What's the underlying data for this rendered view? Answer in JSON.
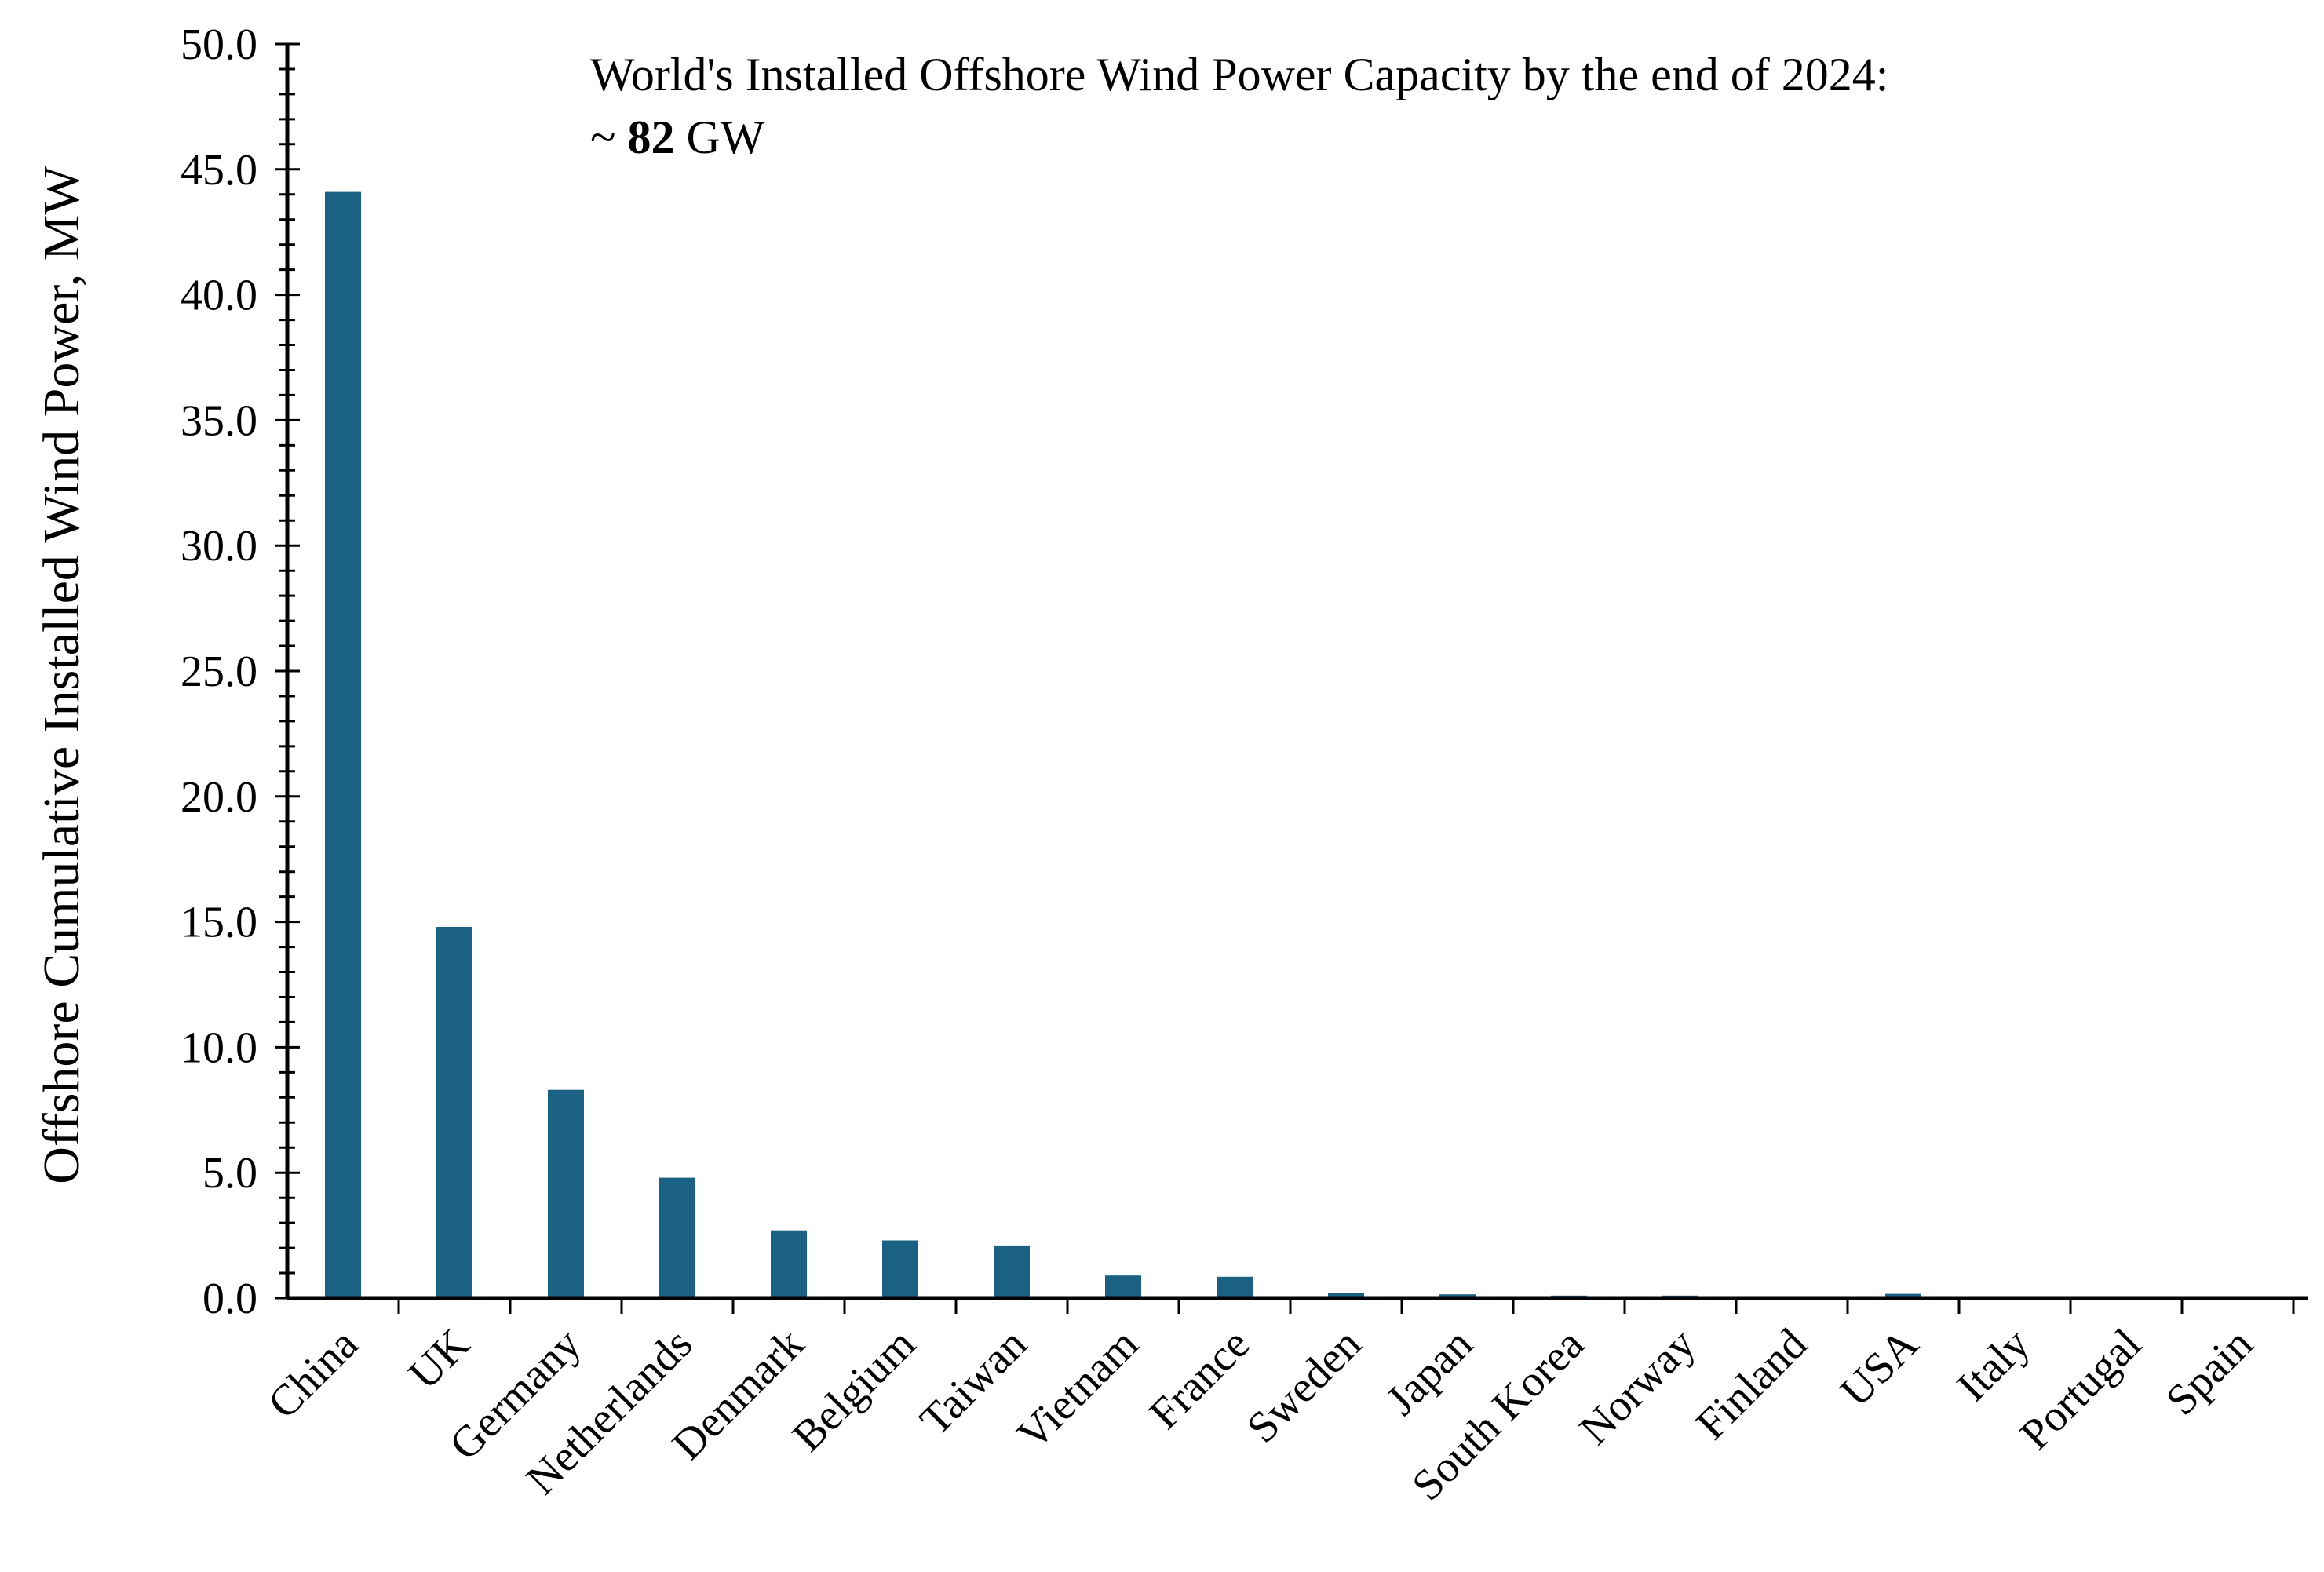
{
  "chart_data": {
    "type": "bar",
    "title": "",
    "annotation": {
      "line1": "World's Installed Offshore Wind Power Capacity by the end of 2024:",
      "line2_prefix": "~ ",
      "line2_value": "82",
      "line2_suffix": " GW"
    },
    "xlabel": "",
    "ylabel": "Offshore Cumulative Installed Wind Power, MW",
    "ylim": [
      0,
      50
    ],
    "y_ticks": [
      "0.0",
      "5.0",
      "10.0",
      "15.0",
      "20.0",
      "25.0",
      "30.0",
      "35.0",
      "40.0",
      "45.0",
      "50.0"
    ],
    "y_tick_values": [
      0,
      5,
      10,
      15,
      20,
      25,
      30,
      35,
      40,
      45,
      50
    ],
    "y_minor_step": 1,
    "grid": false,
    "legend": "none",
    "categories": [
      "China",
      "UK",
      "Germany",
      "Netherlands",
      "Denmark",
      "Belgium",
      "Taiwan",
      "Vietnam",
      "France",
      "Sweden",
      "Japan",
      "South Korea",
      "Norway",
      "Finland",
      "USA",
      "Italy",
      "Portugal",
      "Spain"
    ],
    "values": [
      44.1,
      14.8,
      8.3,
      4.8,
      2.7,
      2.3,
      2.1,
      0.9,
      0.85,
      0.2,
      0.15,
      0.1,
      0.1,
      0.07,
      0.17,
      0.03,
      0.03,
      0.0
    ],
    "bar_color": "#1a6184",
    "axis_color": "#000000"
  }
}
